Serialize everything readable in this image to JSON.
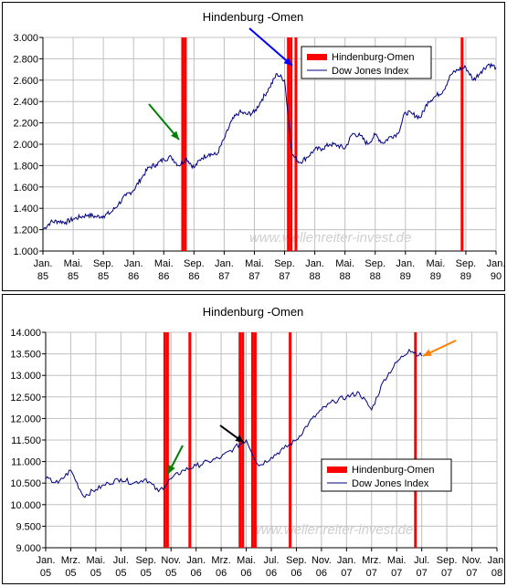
{
  "chart_data": [
    {
      "type": "line",
      "title": "Hindenburg -Omen",
      "xlabel": "",
      "ylabel": "",
      "ylim": [
        1000,
        3000
      ],
      "y_ticks": [
        "1.000",
        "1.200",
        "1.400",
        "1.600",
        "1.800",
        "2.000",
        "2.200",
        "2.400",
        "2.600",
        "2.800",
        "3.000"
      ],
      "x_ticks": [
        {
          "month": "Jan.",
          "year": "85"
        },
        {
          "month": "Mai.",
          "year": "85"
        },
        {
          "month": "Sep.",
          "year": "85"
        },
        {
          "month": "Jan.",
          "year": "86"
        },
        {
          "month": "Mai.",
          "year": "86"
        },
        {
          "month": "Sep.",
          "year": "86"
        },
        {
          "month": "Jan.",
          "year": "87"
        },
        {
          "month": "Mai.",
          "year": "87"
        },
        {
          "month": "Sep.",
          "year": "87"
        },
        {
          "month": "Jan.",
          "year": "88"
        },
        {
          "month": "Mai.",
          "year": "88"
        },
        {
          "month": "Sep.",
          "year": "88"
        },
        {
          "month": "Jan.",
          "year": "89"
        },
        {
          "month": "Mai.",
          "year": "89"
        },
        {
          "month": "Sep.",
          "year": "89"
        },
        {
          "month": "Jan.",
          "year": "90"
        }
      ],
      "grid": true,
      "legend_position": "top-right",
      "legend": {
        "signal_label": "Hindenburg-Omen",
        "index_label": "Dow Jones Index"
      },
      "watermark": "www.wellenreiter-invest.de",
      "x_range": [
        "1985-01",
        "1990-01"
      ],
      "signals": [
        "1986-07",
        "1986-07",
        "1987-09",
        "1987-09",
        "1987-10",
        "1989-08"
      ],
      "series": [
        {
          "name": "Dow Jones Index",
          "color": "#000080",
          "x": [
            "1985-01",
            "1985-02",
            "1985-03",
            "1985-04",
            "1985-05",
            "1985-06",
            "1985-07",
            "1985-08",
            "1985-09",
            "1985-10",
            "1985-11",
            "1985-12",
            "1986-01",
            "1986-02",
            "1986-03",
            "1986-04",
            "1986-05",
            "1986-06",
            "1986-07",
            "1986-08",
            "1986-09",
            "1986-10",
            "1986-11",
            "1986-12",
            "1987-01",
            "1987-02",
            "1987-03",
            "1987-04",
            "1987-05",
            "1987-06",
            "1987-07",
            "1987-08",
            "1987-09",
            "1987-10",
            "1987-11",
            "1987-12",
            "1988-01",
            "1988-02",
            "1988-03",
            "1988-04",
            "1988-05",
            "1988-06",
            "1988-07",
            "1988-08",
            "1988-09",
            "1988-10",
            "1988-11",
            "1988-12",
            "1989-01",
            "1989-02",
            "1989-03",
            "1989-04",
            "1989-05",
            "1989-06",
            "1989-07",
            "1989-08",
            "1989-09",
            "1989-10",
            "1989-11",
            "1989-12",
            "1990-01"
          ],
          "values": [
            1200,
            1270,
            1280,
            1270,
            1300,
            1320,
            1340,
            1320,
            1330,
            1360,
            1440,
            1520,
            1570,
            1680,
            1780,
            1810,
            1860,
            1880,
            1800,
            1870,
            1780,
            1870,
            1910,
            1900,
            2050,
            2220,
            2300,
            2280,
            2300,
            2420,
            2530,
            2660,
            2600,
            1900,
            1830,
            1880,
            1950,
            1960,
            2000,
            1990,
            1960,
            2100,
            2080,
            2000,
            2090,
            2010,
            2070,
            2100,
            2300,
            2280,
            2250,
            2400,
            2450,
            2500,
            2650,
            2700,
            2720,
            2600,
            2680,
            2750,
            2720
          ]
        }
      ]
    },
    {
      "type": "line",
      "title": "Hindenburg -Omen",
      "xlabel": "",
      "ylabel": "",
      "ylim": [
        9000,
        14000
      ],
      "y_ticks": [
        "9.000",
        "9.500",
        "10.000",
        "10.500",
        "11.000",
        "11.500",
        "12.000",
        "12.500",
        "13.000",
        "13.500",
        "14.000"
      ],
      "x_ticks": [
        {
          "month": "Jan.",
          "year": "05"
        },
        {
          "month": "Mrz.",
          "year": "05"
        },
        {
          "month": "Mai.",
          "year": "05"
        },
        {
          "month": "Jul.",
          "year": "05"
        },
        {
          "month": "Sep.",
          "year": "05"
        },
        {
          "month": "Nov.",
          "year": "05"
        },
        {
          "month": "Jan.",
          "year": "06"
        },
        {
          "month": "Mrz.",
          "year": "06"
        },
        {
          "month": "Mai.",
          "year": "06"
        },
        {
          "month": "Jul.",
          "year": "06"
        },
        {
          "month": "Sep.",
          "year": "06"
        },
        {
          "month": "Nov.",
          "year": "06"
        },
        {
          "month": "Jan.",
          "year": "07"
        },
        {
          "month": "Mrz.",
          "year": "07"
        },
        {
          "month": "Mai.",
          "year": "07"
        },
        {
          "month": "Jul.",
          "year": "07"
        },
        {
          "month": "Sep.",
          "year": "07"
        },
        {
          "month": "Nov.",
          "year": "07"
        },
        {
          "month": "Jan.",
          "year": "08"
        }
      ],
      "grid": true,
      "legend_position": "lower-right",
      "legend": {
        "signal_label": "Hindenburg-Omen",
        "index_label": "Dow Jones Index"
      },
      "watermark": "www.wellenreiter-invest.de",
      "x_range": [
        "2005-01",
        "2008-01"
      ],
      "signals": [
        "2005-10",
        "2005-10",
        "2005-12",
        "2006-04",
        "2006-04",
        "2006-05",
        "2006-05",
        "2006-08",
        "2007-06"
      ],
      "series": [
        {
          "name": "Dow Jones Index",
          "color": "#000080",
          "x": [
            "2005-01",
            "2005-02",
            "2005-03",
            "2005-04",
            "2005-05",
            "2005-06",
            "2005-07",
            "2005-08",
            "2005-09",
            "2005-10",
            "2005-11",
            "2005-12",
            "2006-01",
            "2006-02",
            "2006-03",
            "2006-04",
            "2006-05",
            "2006-06",
            "2006-07",
            "2006-08",
            "2006-09",
            "2006-10",
            "2006-11",
            "2006-12",
            "2007-01",
            "2007-02",
            "2007-03",
            "2007-04",
            "2007-05",
            "2007-06",
            "2007-07"
          ],
          "values": [
            10600,
            10500,
            10800,
            10200,
            10350,
            10500,
            10600,
            10500,
            10600,
            10300,
            10600,
            10800,
            10900,
            11000,
            11100,
            11300,
            11500,
            10900,
            11100,
            11300,
            11500,
            11900,
            12200,
            12400,
            12500,
            12600,
            12200,
            12900,
            13300,
            13600,
            13450
          ]
        }
      ]
    }
  ]
}
